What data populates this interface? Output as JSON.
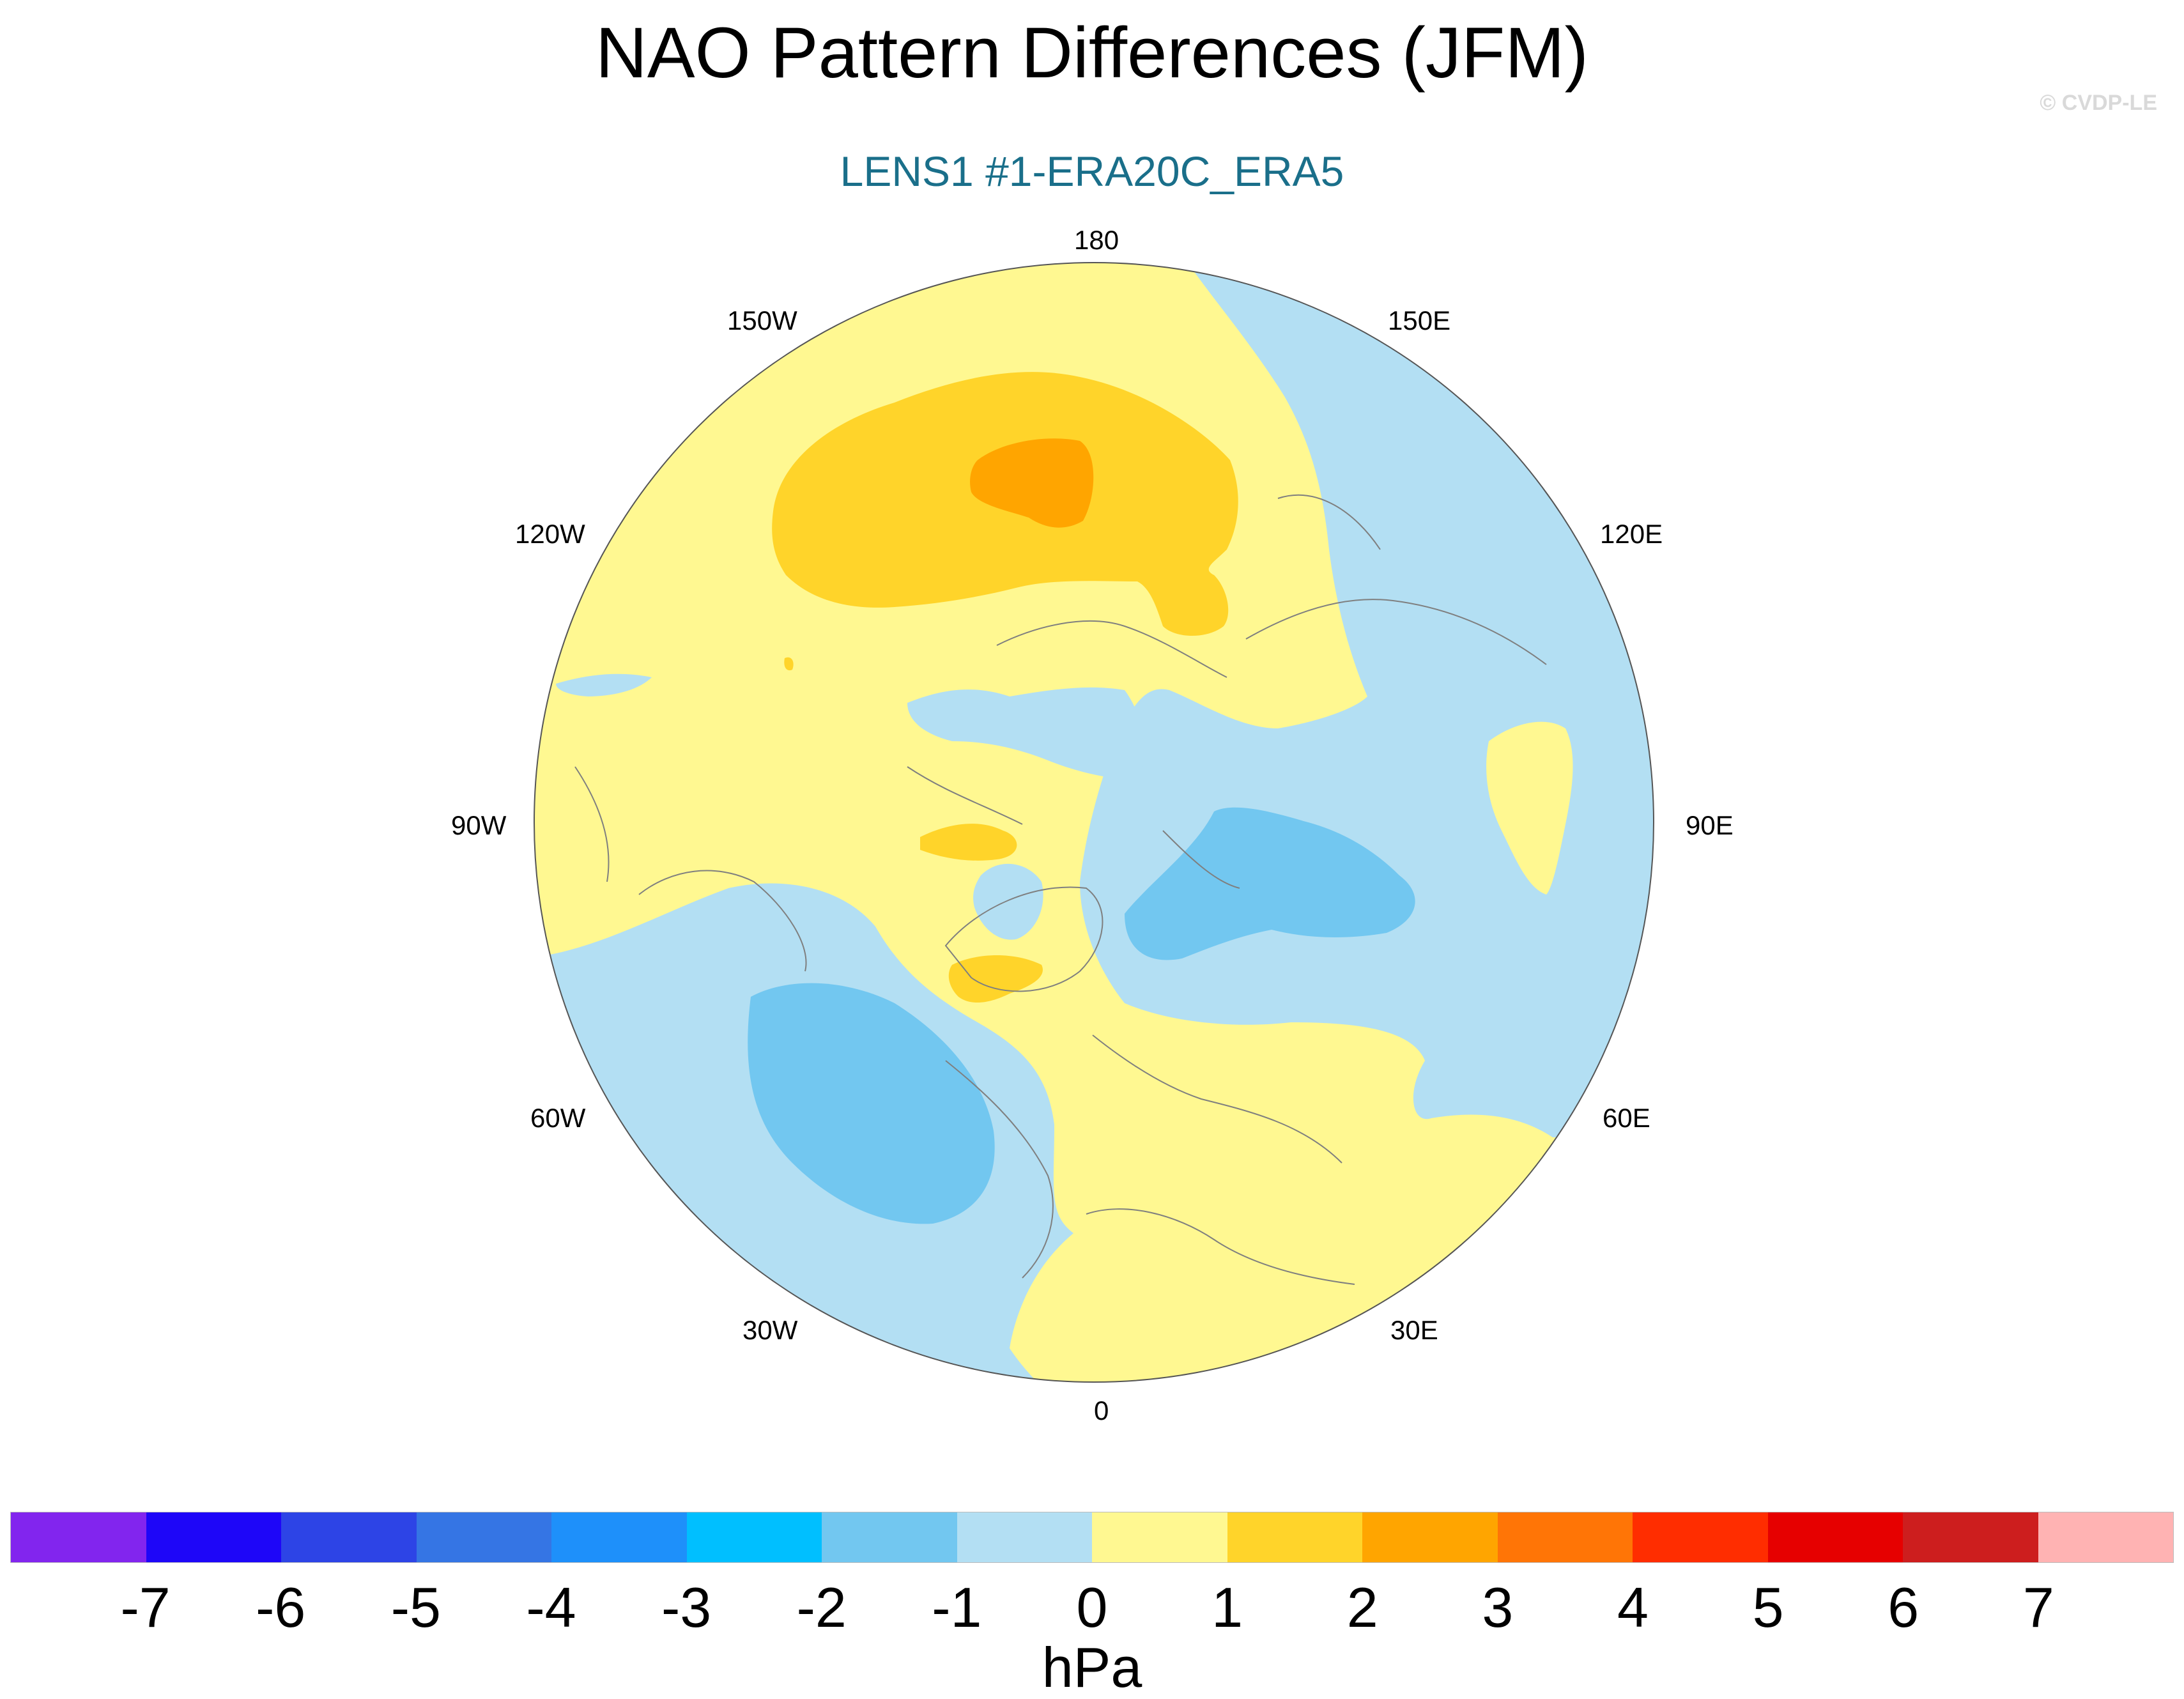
{
  "title": "NAO Pattern Differences (JFM)",
  "copyright": "© CVDP-LE",
  "subtitle": "LENS1 #1-ERA20C_ERA5",
  "map": {
    "projection": "polar stereographic, North Pole",
    "center_longitude_at_bottom": "0",
    "land_outline_color": "#7f7f7f",
    "longitude_labels": [
      "180",
      "150E",
      "120E",
      "90E",
      "60E",
      "30E",
      "0",
      "30W",
      "60W",
      "90W",
      "120W",
      "150W"
    ]
  },
  "colorbar": {
    "units": "hPa",
    "colors": [
      "#8225ee",
      "#1e06f8",
      "#2d44e6",
      "#3575e4",
      "#1e90fa",
      "#00bfff",
      "#72c7f0",
      "#b3dff3",
      "#fff891",
      "#ffd42a",
      "#ffa500",
      "#ff7506",
      "#ff2d00",
      "#e60000",
      "#cd1e1e",
      "#ffb3b3"
    ],
    "tick_labels": [
      "-7",
      "-6",
      "-5",
      "-4",
      "-3",
      "-2",
      "-1",
      "0",
      "1",
      "2",
      "3",
      "4",
      "5",
      "6",
      "7"
    ]
  },
  "colors": {
    "subtitle": "#1a6f8a",
    "negative_0_to_-1": "#b3dff3",
    "negative_-1_to_-2": "#72c7f0",
    "positive_0_to_1": "#fff891",
    "positive_1_to_2": "#ffd42a",
    "positive_2_to_3": "#ffa500"
  }
}
